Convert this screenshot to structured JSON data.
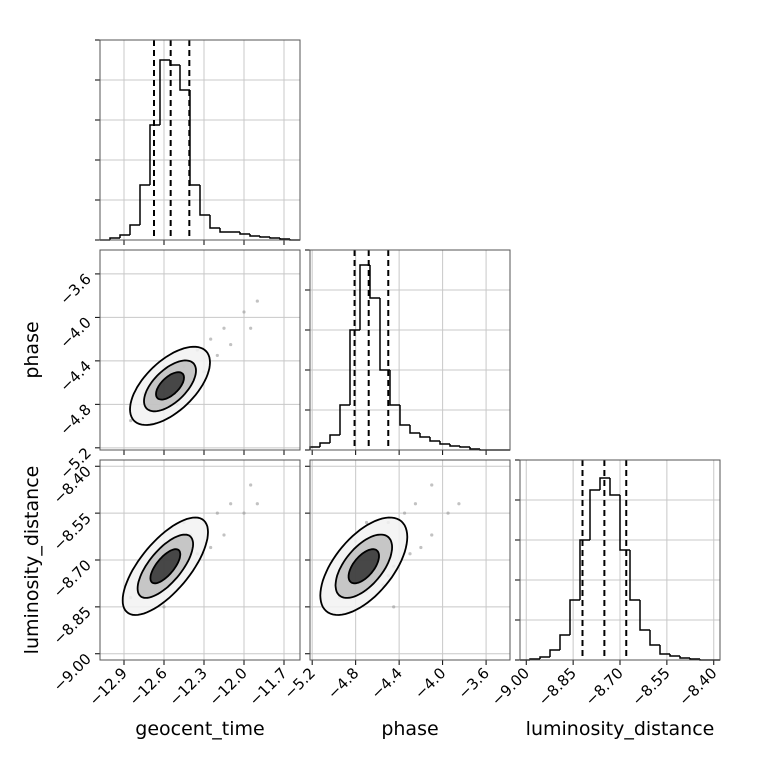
{
  "chart_data": {
    "type": "corner",
    "grid": true,
    "color": "#000000",
    "point_color": "#9a9a9a",
    "hist_ylim": [
      0,
      1000
    ],
    "hist_yticks": [
      0,
      200,
      400,
      600,
      800,
      1000
    ],
    "contour_levels": [
      0.7,
      1.3,
      2.0
    ],
    "parameters": [
      {
        "label": "geocent_time",
        "lim": [
          -13.08,
          -11.58
        ],
        "ticks": [
          {
            "value": -12.9,
            "label": "−12.9"
          },
          {
            "value": -12.6,
            "label": "−12.6"
          },
          {
            "value": -12.3,
            "label": "−12.3"
          },
          {
            "value": -12.0,
            "label": "−12.0"
          },
          {
            "value": -11.7,
            "label": "−11.7"
          }
        ],
        "bins": [
          -13.08,
          -13.005,
          -12.93,
          -12.855,
          -12.78,
          -12.705,
          -12.63,
          -12.555,
          -12.48,
          -12.405,
          -12.33,
          -12.255,
          -12.18,
          -12.105,
          -12.03,
          -11.955,
          -11.88,
          -11.805,
          -11.73,
          -11.655,
          -11.58
        ],
        "counts": [
          0,
          10,
          25,
          75,
          275,
          575,
          900,
          875,
          750,
          275,
          125,
          60,
          40,
          40,
          30,
          20,
          15,
          10,
          5,
          0
        ],
        "quantiles": [
          -12.675,
          -12.55,
          -12.41
        ],
        "samples": [
          -12.85,
          -12.75,
          -12.7,
          -12.65,
          -12.6,
          -12.55,
          -12.5,
          -12.45,
          -12.4,
          -12.35,
          -12.3,
          -12.25,
          -12.2,
          -12.15,
          -12.1,
          -12.0,
          -11.95,
          -11.9,
          -12.6,
          -12.45
        ]
      },
      {
        "label": "phase",
        "lim": [
          -5.22,
          -3.38
        ],
        "ticks": [
          {
            "value": -5.2,
            "label": "−5.2"
          },
          {
            "value": -4.8,
            "label": "−4.8"
          },
          {
            "value": -4.4,
            "label": "−4.4"
          },
          {
            "value": -4.0,
            "label": "−4.0"
          },
          {
            "value": -3.6,
            "label": "−3.6"
          }
        ],
        "bins": [
          -5.22,
          -5.128,
          -5.036,
          -4.944,
          -4.852,
          -4.76,
          -4.668,
          -4.576,
          -4.484,
          -4.392,
          -4.3,
          -4.208,
          -4.116,
          -4.024,
          -3.932,
          -3.84,
          -3.748,
          -3.656,
          -3.564,
          -3.472,
          -3.38
        ],
        "counts": [
          15,
          35,
          75,
          225,
          600,
          925,
          760,
          400,
          225,
          125,
          85,
          65,
          45,
          30,
          20,
          15,
          5,
          0,
          0,
          0
        ],
        "quantiles": [
          -4.81,
          -4.68,
          -4.5
        ],
        "samples": [
          -4.95,
          -4.7,
          -4.85,
          -4.55,
          -4.75,
          -4.5,
          -4.8,
          -4.45,
          -4.6,
          -4.3,
          -4.5,
          -4.2,
          -4.35,
          -4.1,
          -4.25,
          -3.95,
          -4.1,
          -3.85,
          -4.45,
          -4.7
        ]
      },
      {
        "label": "luminosity_distance",
        "lim": [
          -9.02,
          -8.38
        ],
        "ticks": [
          {
            "value": -9.0,
            "label": "−9.00"
          },
          {
            "value": -8.85,
            "label": "−8.85"
          },
          {
            "value": -8.7,
            "label": "−8.70"
          },
          {
            "value": -8.55,
            "label": "−8.55"
          },
          {
            "value": -8.4,
            "label": "−8.40"
          }
        ],
        "bins": [
          -9.02,
          -8.988,
          -8.956,
          -8.924,
          -8.892,
          -8.86,
          -8.828,
          -8.796,
          -8.764,
          -8.732,
          -8.7,
          -8.668,
          -8.636,
          -8.604,
          -8.572,
          -8.54,
          -8.508,
          -8.476,
          -8.444,
          -8.412,
          -8.38
        ],
        "counts": [
          0,
          5,
          15,
          50,
          125,
          300,
          600,
          850,
          910,
          825,
          550,
          300,
          150,
          75,
          30,
          20,
          10,
          5,
          0,
          0
        ],
        "quantiles": [
          -8.82,
          -8.75,
          -8.68
        ],
        "samples": [
          -8.82,
          -8.8,
          -8.7,
          -8.78,
          -8.68,
          -8.75,
          -8.64,
          -8.72,
          -8.62,
          -8.68,
          -8.58,
          -8.66,
          -8.55,
          -8.62,
          -8.52,
          -8.55,
          -8.46,
          -8.52,
          -8.85,
          -8.58
        ]
      }
    ],
    "contours": [
      {
        "x": 0,
        "y": 1,
        "cx": -12.555,
        "cy": -4.63,
        "sx": 0.15,
        "sy": 0.18,
        "rho": 0.6
      },
      {
        "x": 0,
        "y": 2,
        "cx": -12.59,
        "cy": -8.72,
        "sx": 0.16,
        "sy": 0.078,
        "rho": 0.7
      },
      {
        "x": 1,
        "y": 2,
        "cx": -4.725,
        "cy": -8.72,
        "sx": 0.2,
        "sy": 0.078,
        "rho": 0.6
      }
    ]
  }
}
